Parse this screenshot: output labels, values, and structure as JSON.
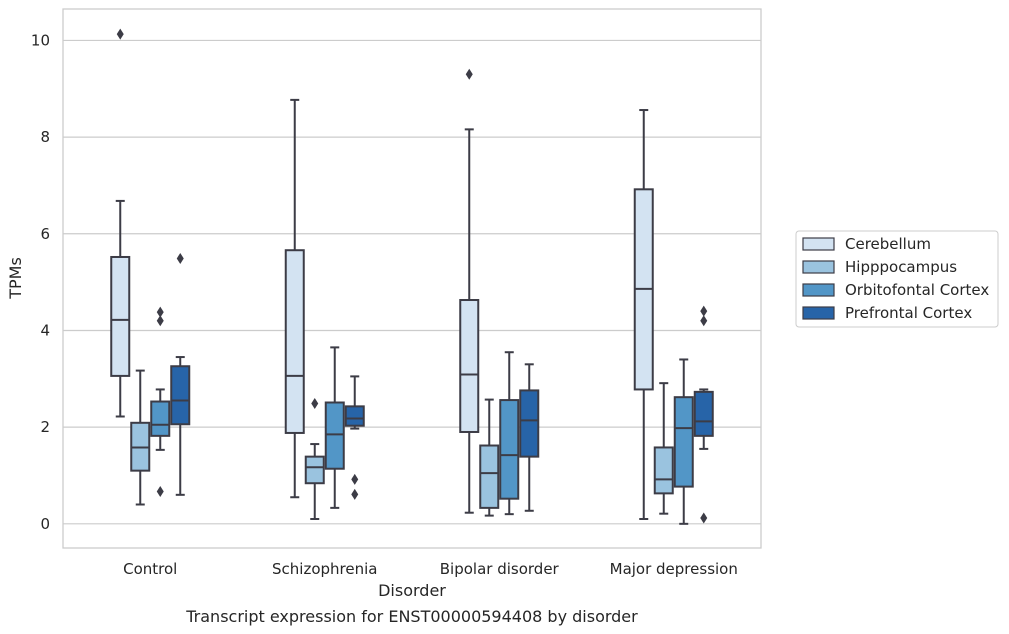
{
  "chart_data": {
    "type": "box",
    "caption": "Transcript expression for ENST00000594408 by disorder",
    "xlabel": "Disorder",
    "ylabel": "TPMs",
    "ylim": [
      -0.5,
      10.65
    ],
    "yticks": [
      0,
      2,
      4,
      6,
      8,
      10
    ],
    "grid": true,
    "legend_placement": "right",
    "categories": [
      "Control",
      "Schizophrenia",
      "Bipolar disorder",
      "Major depression"
    ],
    "series": [
      {
        "name": "Cerebellum",
        "color": "#d3e3f2",
        "boxes": [
          {
            "whislo": 2.22,
            "q1": 3.06,
            "med": 4.22,
            "q3": 5.52,
            "whishi": 6.68,
            "fliers": [
              10.13
            ]
          },
          {
            "whislo": 0.55,
            "q1": 1.88,
            "med": 3.06,
            "q3": 5.66,
            "whishi": 8.77,
            "fliers": []
          },
          {
            "whislo": 0.23,
            "q1": 1.9,
            "med": 3.09,
            "q3": 4.63,
            "whishi": 8.16,
            "fliers": [
              9.3
            ]
          },
          {
            "whislo": 0.1,
            "q1": 2.78,
            "med": 4.86,
            "q3": 6.92,
            "whishi": 8.56,
            "fliers": []
          }
        ]
      },
      {
        "name": "Hipppocampus",
        "color": "#9ac3df",
        "boxes": [
          {
            "whislo": 0.4,
            "q1": 1.1,
            "med": 1.58,
            "q3": 2.09,
            "whishi": 3.17,
            "fliers": []
          },
          {
            "whislo": 0.1,
            "q1": 0.84,
            "med": 1.17,
            "q3": 1.39,
            "whishi": 1.65,
            "fliers": [
              2.49
            ]
          },
          {
            "whislo": 0.17,
            "q1": 0.33,
            "med": 1.05,
            "q3": 1.62,
            "whishi": 2.57,
            "fliers": []
          },
          {
            "whislo": 0.21,
            "q1": 0.63,
            "med": 0.92,
            "q3": 1.58,
            "whishi": 2.91,
            "fliers": []
          }
        ]
      },
      {
        "name": "Orbitofontal Cortex",
        "color": "#5296c7",
        "boxes": [
          {
            "whislo": 1.53,
            "q1": 1.82,
            "med": 2.05,
            "q3": 2.53,
            "whishi": 2.78,
            "fliers": [
              0.67,
              4.2,
              4.38
            ]
          },
          {
            "whislo": 0.33,
            "q1": 1.14,
            "med": 1.85,
            "q3": 2.51,
            "whishi": 3.65,
            "fliers": []
          },
          {
            "whislo": 0.2,
            "q1": 0.52,
            "med": 1.42,
            "q3": 2.56,
            "whishi": 3.55,
            "fliers": []
          },
          {
            "whislo": 0.0,
            "q1": 0.77,
            "med": 1.98,
            "q3": 2.62,
            "whishi": 3.4,
            "fliers": []
          }
        ]
      },
      {
        "name": "Prefrontal Cortex",
        "color": "#2764a8",
        "boxes": [
          {
            "whislo": 0.6,
            "q1": 2.06,
            "med": 2.55,
            "q3": 3.26,
            "whishi": 3.45,
            "fliers": [
              5.49
            ]
          },
          {
            "whislo": 1.97,
            "q1": 2.03,
            "med": 2.18,
            "q3": 2.43,
            "whishi": 3.05,
            "fliers": [
              0.92,
              0.61
            ]
          },
          {
            "whislo": 0.27,
            "q1": 1.39,
            "med": 2.14,
            "q3": 2.76,
            "whishi": 3.3,
            "fliers": []
          },
          {
            "whislo": 1.55,
            "q1": 1.82,
            "med": 2.12,
            "q3": 2.73,
            "whishi": 2.78,
            "fliers": [
              4.2,
              4.4,
              0.12
            ]
          }
        ]
      }
    ]
  }
}
